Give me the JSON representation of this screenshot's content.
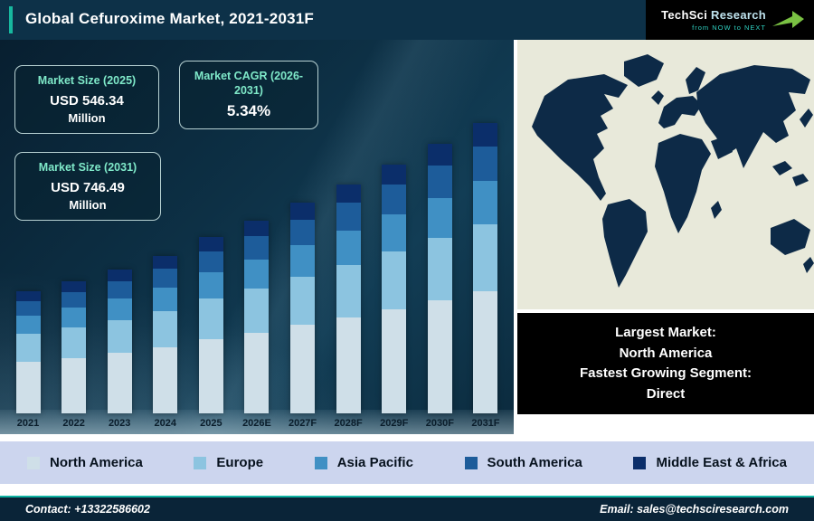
{
  "header": {
    "title": "Global Cefuroxime Market, 2021-2031F"
  },
  "logo": {
    "brand_a": "TechSci",
    "brand_b": "Research",
    "tagline": "from NOW to NEXT"
  },
  "stats": [
    {
      "label": "Market Size (2025)",
      "value": "USD 546.34",
      "unit": "Million"
    },
    {
      "label": "Market CAGR (2026-2031)",
      "value": "5.34%",
      "unit": ""
    },
    {
      "label": "Market Size (2031)",
      "value": "USD 746.49",
      "unit": "Million"
    }
  ],
  "chart_data": {
    "type": "bar",
    "stacked": true,
    "title": "Global Cefuroxime Market, 2021-2031F",
    "xlabel": "",
    "ylabel": "",
    "unit_hint": "USD Million",
    "legend_position": "bottom",
    "grid": false,
    "categories": [
      "2021",
      "2022",
      "2023",
      "2024",
      "2025",
      "2026E",
      "2027F",
      "2028F",
      "2029F",
      "2030F",
      "2031F"
    ],
    "series": [
      {
        "name": "North America",
        "color": "#cfdfe8",
        "values": [
          190.0,
          197.5,
          205.8,
          215.9,
          229.5,
          241.9,
          254.9,
          268.4,
          282.7,
          297.8,
          313.5
        ]
      },
      {
        "name": "Europe",
        "color": "#8cc4e0",
        "values": [
          104.0,
          108.1,
          112.7,
          118.2,
          125.7,
          132.5,
          139.6,
          147.0,
          154.8,
          163.1,
          171.7
        ]
      },
      {
        "name": "Asia Pacific",
        "color": "#4090c4",
        "values": [
          67.8,
          70.5,
          73.5,
          77.1,
          82.0,
          86.4,
          91.1,
          95.9,
          101.0,
          106.4,
          112.0
        ]
      },
      {
        "name": "South America",
        "color": "#1d5c9a",
        "values": [
          54.2,
          56.4,
          58.8,
          61.7,
          65.6,
          69.1,
          72.8,
          76.7,
          80.8,
          85.1,
          89.6
        ]
      },
      {
        "name": "Middle East & Africa",
        "color": "#0b2e6a",
        "values": [
          36.2,
          37.6,
          39.2,
          41.1,
          43.7,
          46.1,
          48.6,
          51.1,
          53.8,
          56.7,
          59.7
        ]
      }
    ],
    "totals_note": "2025 total = 546.34, 2031 total = 746.49 (USD Million); intermediate stack values estimated from bar heights"
  },
  "info": {
    "lines": [
      "Largest Market:",
      "North America",
      "Fastest Growing Segment:",
      "Direct"
    ]
  },
  "footer": {
    "contact": "Contact: +13322586602",
    "email": "Email: sales@techsciresearch.com"
  },
  "colors": {
    "accent_teal": "#17b89f",
    "header_bg": "#0d3148",
    "legend_bg": "#ccd5ee",
    "map_land": "#0d2a47",
    "map_ocean": "#e8e9da",
    "logo_arrow_green": "#7ac143"
  }
}
